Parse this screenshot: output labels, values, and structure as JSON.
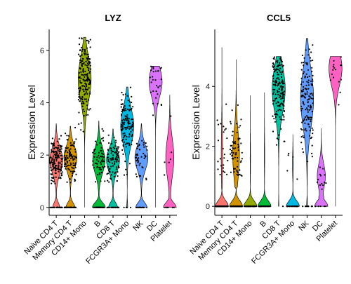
{
  "chart_data": [
    {
      "type": "violin",
      "title": "LYZ",
      "ylabel": "Expression Level",
      "xlabel": "",
      "ylim": [
        -0.3,
        6.8
      ],
      "yticks": [
        0,
        2,
        4,
        6
      ],
      "categories": [
        "Naive CD4 T",
        "Memory CD4 T",
        "CD14+ Mono",
        "B",
        "CD8 T",
        "FCGR3A+ Mono",
        "NK",
        "DC",
        "Platelet"
      ],
      "colors": [
        "#F8766D",
        "#D39200",
        "#93AA00",
        "#00BA38",
        "#00C19F",
        "#00B9E3",
        "#619CFF",
        "#DB72FB",
        "#FF61C3"
      ],
      "zero_fraction": [
        0.25,
        0.3,
        0.0,
        0.4,
        0.3,
        0.05,
        0.35,
        0.0,
        0.5
      ],
      "nonzero_peak": [
        1.8,
        1.9,
        4.9,
        1.8,
        1.8,
        3.1,
        1.9,
        4.8,
        1.9
      ],
      "nonzero_min": [
        0.8,
        0.8,
        2.3,
        0.8,
        0.8,
        1.1,
        0.8,
        2.5,
        0.6
      ],
      "nonzero_max": [
        3.2,
        3.1,
        6.5,
        3.3,
        3.0,
        4.6,
        3.2,
        5.4,
        4.3
      ],
      "points_per_group": [
        180,
        140,
        170,
        110,
        120,
        130,
        60,
        30,
        14
      ]
    },
    {
      "type": "violin",
      "title": "CCL5",
      "ylabel": "Expression Level",
      "xlabel": "",
      "ylim": [
        -0.3,
        5.9
      ],
      "yticks": [
        0,
        2,
        4
      ],
      "categories": [
        "Naive CD4 T",
        "Memory CD4 T",
        "CD14+ Mono",
        "B",
        "CD8 T",
        "FCGR3A+ Mono",
        "NK",
        "DC",
        "Platelet"
      ],
      "colors": [
        "#F8766D",
        "#D39200",
        "#93AA00",
        "#00BA38",
        "#00C19F",
        "#00B9E3",
        "#619CFF",
        "#DB72FB",
        "#FF61C3"
      ],
      "zero_fraction": [
        0.85,
        0.55,
        0.95,
        0.95,
        0.02,
        0.9,
        0.05,
        0.5,
        0.0
      ],
      "nonzero_peak": [
        1.7,
        1.7,
        1.6,
        1.7,
        3.9,
        1.4,
        3.6,
        1.0,
        4.6
      ],
      "nonzero_min": [
        1.0,
        1.0,
        0.9,
        1.0,
        1.1,
        0.9,
        0.8,
        0.5,
        2.1
      ],
      "nonzero_max": [
        5.3,
        4.9,
        3.7,
        3.8,
        5.0,
        2.4,
        5.6,
        2.6,
        5.0
      ],
      "points_per_group": [
        160,
        150,
        40,
        40,
        170,
        30,
        150,
        20,
        16
      ]
    }
  ]
}
